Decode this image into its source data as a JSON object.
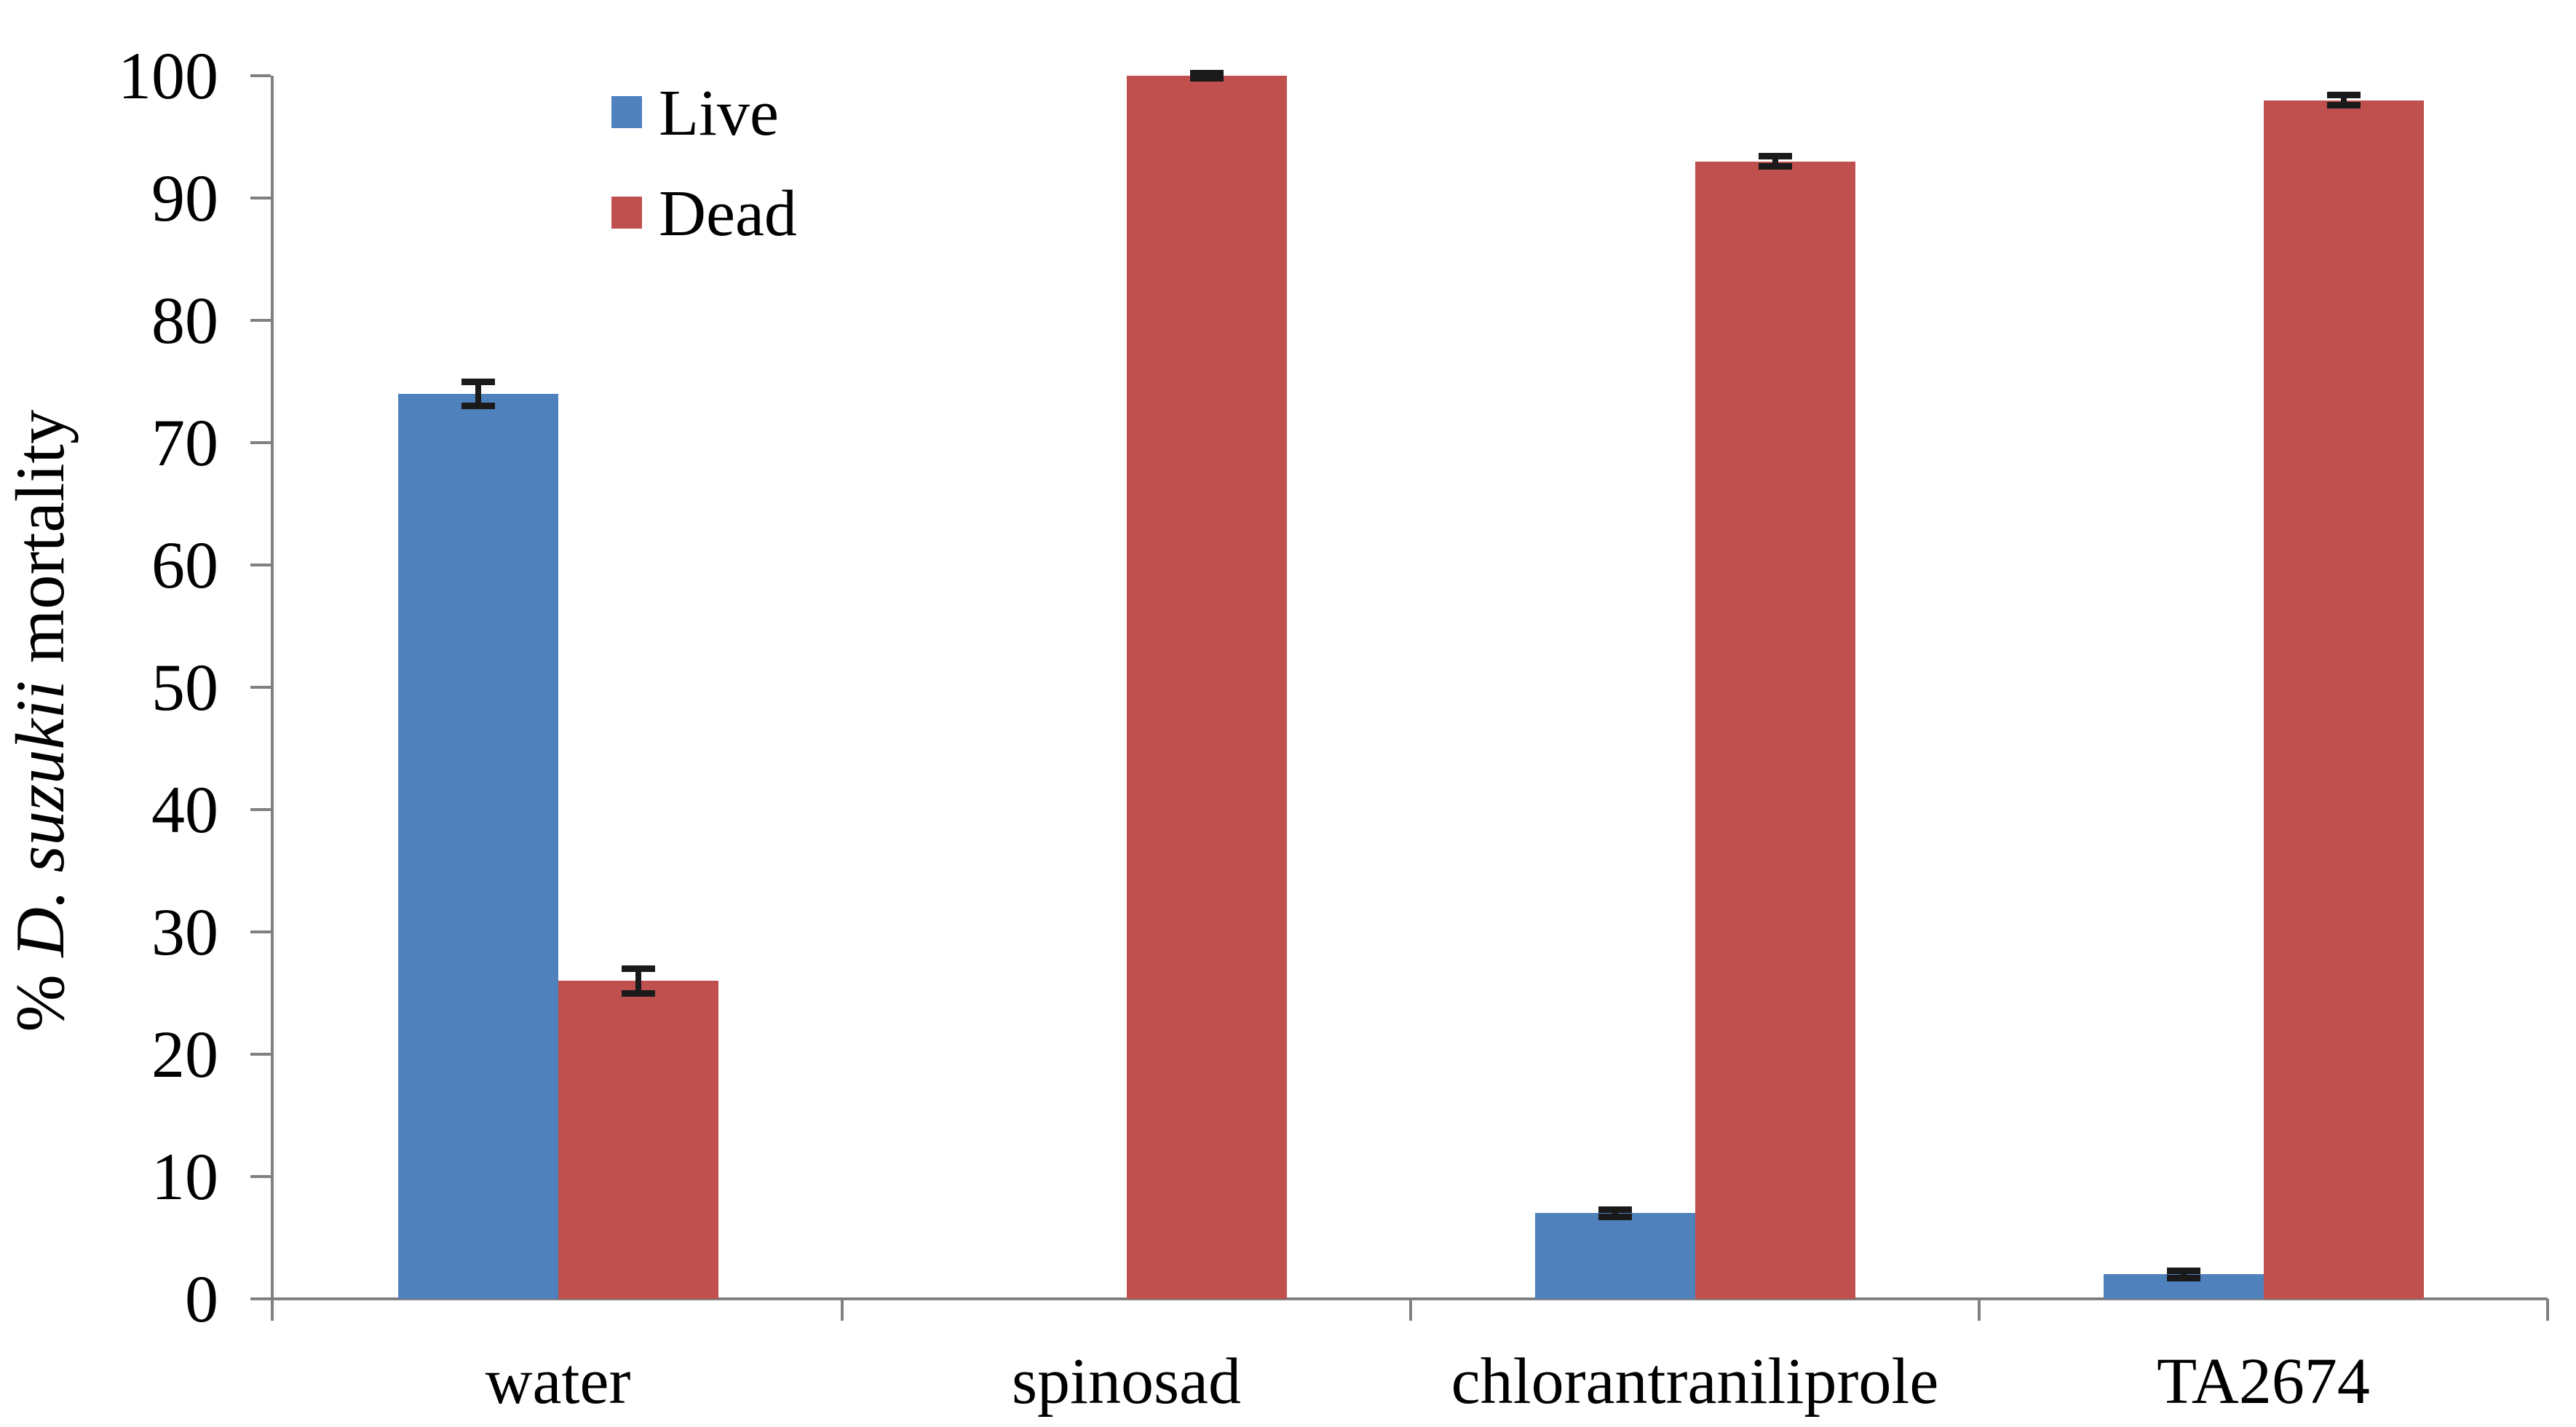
{
  "chart_data": {
    "type": "bar",
    "title": "",
    "categories": [
      "water",
      "spinosad",
      "chlorantraniliprole",
      "TA2674"
    ],
    "series": [
      {
        "name": "Live",
        "color": "#4F81BD",
        "values": [
          74,
          0,
          7,
          2
        ],
        "errors": [
          1,
          0,
          0.3,
          0.3
        ]
      },
      {
        "name": "Dead",
        "color": "#C0504D",
        "values": [
          26,
          100,
          93,
          98
        ],
        "errors": [
          1,
          0.2,
          0.4,
          0.4
        ]
      }
    ],
    "ylabel_prefix": "% ",
    "ylabel_italic": "D. suzukii",
    "ylabel_suffix": " mortality",
    "xlabel": "",
    "ylim": [
      0,
      100
    ],
    "yticks": [
      0,
      10,
      20,
      30,
      40,
      50,
      60,
      70,
      80,
      90,
      100
    ],
    "grid": false,
    "legend_position": "top-left-inside",
    "legend_entries": [
      "Live",
      "Dead"
    ],
    "axis_color": "#808080",
    "error_bar_color": "#1a1a1a",
    "text_color": "#000000",
    "background_color": "#ffffff"
  }
}
